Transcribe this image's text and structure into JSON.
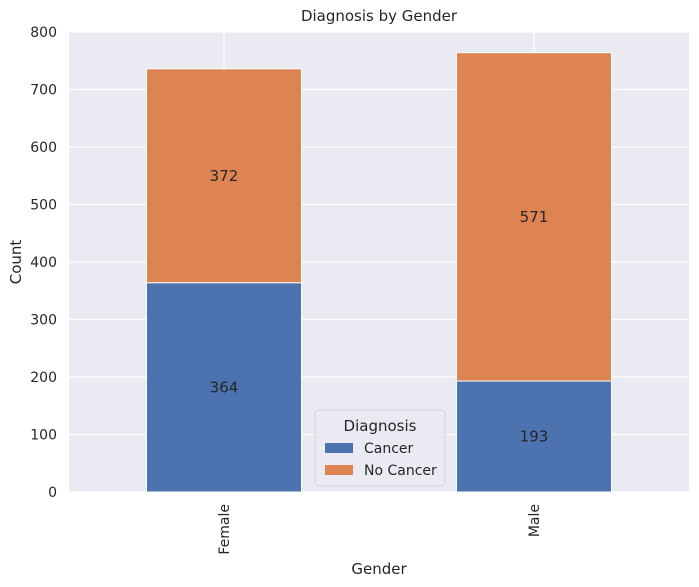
{
  "chart_data": {
    "type": "bar",
    "stacked": true,
    "title": "Diagnosis by Gender",
    "xlabel": "Gender",
    "ylabel": "Count",
    "categories": [
      "Female",
      "Male"
    ],
    "series": [
      {
        "name": "Cancer",
        "values": [
          364,
          193
        ],
        "color": "#4c72b0"
      },
      {
        "name": "No Cancer",
        "values": [
          372,
          571
        ],
        "color": "#dd8452"
      }
    ],
    "ylim": [
      0,
      800
    ],
    "yticks": [
      0,
      100,
      200,
      300,
      400,
      500,
      600,
      700,
      800
    ],
    "grid": true,
    "legend": {
      "title": "Diagnosis",
      "placement": "bottom-center"
    },
    "colors": {
      "plot_background": "#eaeaf2",
      "grid": "#ffffff"
    }
  }
}
